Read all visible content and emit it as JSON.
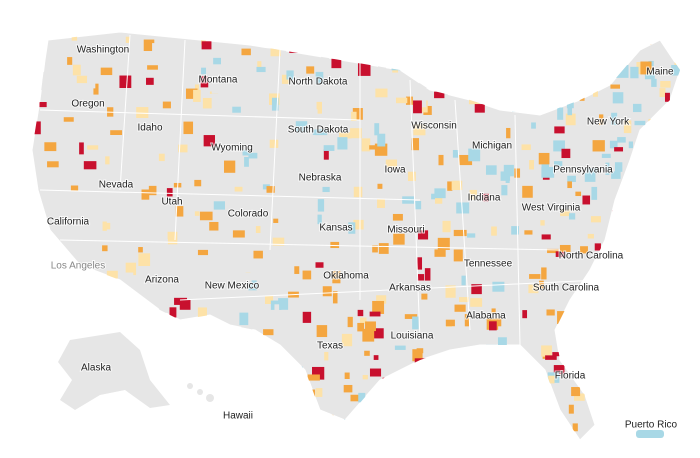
{
  "labels": [
    "Washington",
    "Oregon",
    "Idaho",
    "Montana",
    "North Dakota",
    "South Dakota",
    "Wyoming",
    "Nevada",
    "Utah",
    "Colorado",
    "Nebraska",
    "California",
    "Los Angeles",
    "Arizona",
    "New Mexico",
    "Kansas",
    "Oklahoma",
    "Texas",
    "Iowa",
    "Missouri",
    "Arkansas",
    "Louisiana",
    "Wisconsin",
    "Michigan",
    "Indiana",
    "Tennessee",
    "Alabama",
    "West Virginia",
    "Pennsylvania",
    "New York",
    "Maine",
    "North Carolina",
    "South Carolina",
    "Florida",
    "Alaska",
    "Hawaii",
    "Puerto Rico"
  ]
}
